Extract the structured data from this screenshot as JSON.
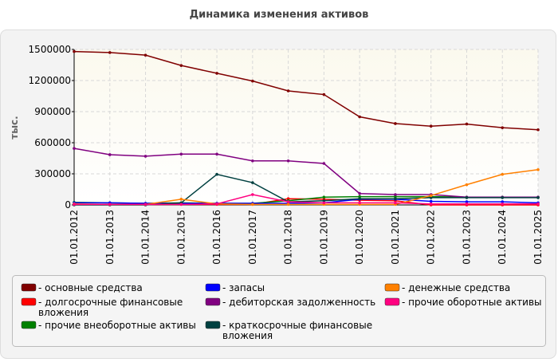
{
  "chart_data": {
    "type": "line",
    "title": "Динамика изменения активов",
    "y_label": "тыс.",
    "categories": [
      "01.01.2012",
      "01.01.2013",
      "01.01.2014",
      "01.01.2015",
      "01.01.2016",
      "01.01.2017",
      "01.01.2018",
      "01.01.2019",
      "01.01.2020",
      "01.01.2021",
      "01.01.2022",
      "01.01.2023",
      "01.01.2024",
      "01.01.2025"
    ],
    "ylim": [
      0,
      1500000
    ],
    "yticks": [
      0,
      300000,
      600000,
      900000,
      1200000,
      1500000
    ],
    "grid": true,
    "series": [
      {
        "name": "- основные средства",
        "color": "#800000",
        "values": [
          1480000,
          1470000,
          1445000,
          1345000,
          1270000,
          1195000,
          1100000,
          1065000,
          850000,
          785000,
          760000,
          780000,
          745000,
          725000
        ]
      },
      {
        "name": "- долгосрочные финансовые вложения",
        "color": "#ff0000",
        "values": [
          5000,
          5000,
          5000,
          5000,
          5000,
          5000,
          60000,
          55000,
          45000,
          40000,
          0,
          0,
          0,
          0
        ]
      },
      {
        "name": "- прочие внеоборотные активы",
        "color": "#008000",
        "values": [
          25000,
          20000,
          15000,
          20000,
          15000,
          15000,
          40000,
          75000,
          80000,
          80000,
          80000,
          75000,
          75000,
          75000
        ]
      },
      {
        "name": "- запасы",
        "color": "#0000ff",
        "values": [
          20000,
          20000,
          15000,
          15000,
          15000,
          15000,
          15000,
          20000,
          55000,
          55000,
          35000,
          30000,
          30000,
          20000
        ]
      },
      {
        "name": "- дебиторская задолженность",
        "color": "#800080",
        "values": [
          545000,
          485000,
          470000,
          490000,
          490000,
          425000,
          425000,
          400000,
          110000,
          100000,
          100000,
          75000,
          75000,
          75000
        ]
      },
      {
        "name": "- краткосрочные финансовые вложения",
        "color": "#004040",
        "values": [
          0,
          0,
          0,
          20000,
          295000,
          215000,
          30000,
          40000,
          60000,
          60000,
          70000,
          70000,
          70000,
          70000
        ]
      },
      {
        "name": "- денежные средства",
        "color": "#ff8000",
        "values": [
          10000,
          5000,
          5000,
          55000,
          10000,
          5000,
          5000,
          5000,
          5000,
          5000,
          90000,
          195000,
          295000,
          340000
        ]
      },
      {
        "name": "- прочие оборотные активы",
        "color": "#ff0080",
        "values": [
          5000,
          5000,
          5000,
          5000,
          10000,
          100000,
          30000,
          20000,
          20000,
          20000,
          10000,
          10000,
          10000,
          10000
        ]
      }
    ]
  }
}
